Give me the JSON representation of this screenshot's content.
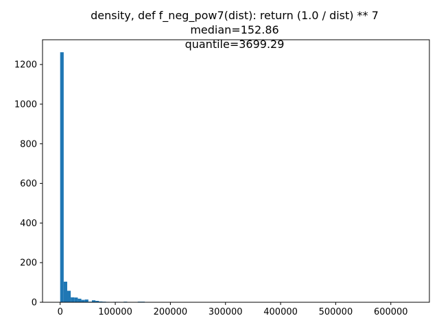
{
  "chart_data": {
    "type": "bar",
    "title_lines": [
      "density, def f_neg_pow7(dist): return (1.0 / dist) ** 7",
      "median=152.86",
      "quantile=3699.29"
    ],
    "xlabel": "",
    "ylabel": "",
    "xlim": [
      -32000,
      670000
    ],
    "ylim": [
      0,
      1325
    ],
    "x_ticks": [
      0,
      100000,
      200000,
      300000,
      400000,
      500000,
      600000
    ],
    "y_ticks": [
      0,
      200,
      400,
      600,
      800,
      1000,
      1200
    ],
    "bin_width": 6400,
    "bins": [
      {
        "x": 0,
        "value": 1262
      },
      {
        "x": 6400,
        "value": 104
      },
      {
        "x": 12800,
        "value": 58
      },
      {
        "x": 19200,
        "value": 25
      },
      {
        "x": 25600,
        "value": 24
      },
      {
        "x": 32000,
        "value": 18
      },
      {
        "x": 38400,
        "value": 12
      },
      {
        "x": 44800,
        "value": 14
      },
      {
        "x": 51200,
        "value": 3
      },
      {
        "x": 57600,
        "value": 10
      },
      {
        "x": 64000,
        "value": 7
      },
      {
        "x": 70400,
        "value": 4
      },
      {
        "x": 76800,
        "value": 3
      },
      {
        "x": 83200,
        "value": 2
      },
      {
        "x": 89600,
        "value": 1
      },
      {
        "x": 96000,
        "value": 2
      },
      {
        "x": 102400,
        "value": 2
      },
      {
        "x": 108800,
        "value": 1
      },
      {
        "x": 115200,
        "value": 3
      },
      {
        "x": 121600,
        "value": 1
      },
      {
        "x": 134400,
        "value": 1
      },
      {
        "x": 140800,
        "value": 3
      },
      {
        "x": 147200,
        "value": 3
      },
      {
        "x": 153600,
        "value": 1
      },
      {
        "x": 179200,
        "value": 1
      },
      {
        "x": 236800,
        "value": 1
      },
      {
        "x": 403200,
        "value": 1
      },
      {
        "x": 633600,
        "value": 1
      }
    ],
    "bar_color": "#1f77b4",
    "grid": false,
    "legend": "none"
  }
}
